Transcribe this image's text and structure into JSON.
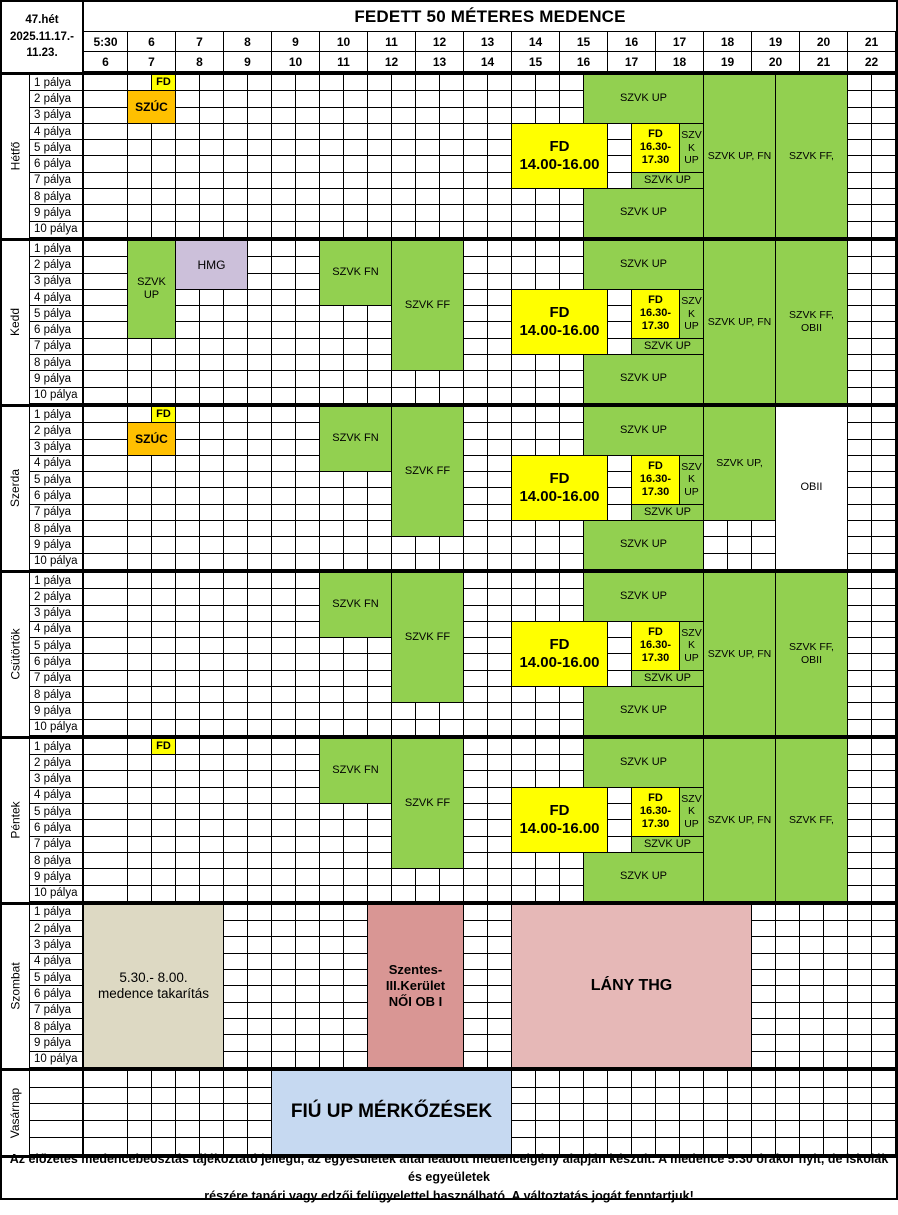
{
  "week": "47.hét\n2025.11.17.-\n11.23.",
  "title": "FEDETT 50 MÉTERES MEDENCE",
  "time_header": {
    "row1": [
      "5:30",
      "6",
      "7",
      "8",
      "9",
      "10",
      "11",
      "12",
      "13",
      "14",
      "15",
      "16",
      "17",
      "18",
      "19",
      "20",
      "21"
    ],
    "row2": [
      "6",
      "7",
      "8",
      "9",
      "10",
      "11",
      "12",
      "13",
      "14",
      "15",
      "16",
      "17",
      "18",
      "19",
      "20",
      "21",
      "22"
    ]
  },
  "lane_labels": [
    "1 pálya",
    "2 pálya",
    "3 pálya",
    "4 pálya",
    "5 pálya",
    "6 pálya",
    "7 pálya",
    "8 pálya",
    "9 pálya",
    "10 pálya"
  ],
  "palette": {
    "green": "#92D050",
    "yellow": "#FFFF00",
    "orange": "#FFC000",
    "purple": "#CCC0DA",
    "beige": "#DDD9C3",
    "red": "#D99694",
    "pink": "#E6B8B7",
    "blue": "#C6D9F1",
    "white": "#FFFFFF"
  },
  "days": [
    {
      "name": "Hétfő",
      "rows": 10,
      "show_lanes": true,
      "blocks": [
        {
          "label": "FD",
          "start": 6.5,
          "end": 7,
          "row": 1,
          "rows": 1,
          "color": "yellow",
          "bold": true,
          "size": 11
        },
        {
          "label": "SZÚC",
          "start": 6,
          "end": 7,
          "row": 2,
          "rows": 2,
          "color": "orange",
          "bold": true,
          "size": 12
        },
        {
          "label": "SZVK UP",
          "start": 15.5,
          "end": 18,
          "row": 1,
          "rows": 3,
          "color": "green",
          "size": 11
        },
        {
          "label": "FD\n14.00-16.00",
          "start": 14,
          "end": 16,
          "row": 4,
          "rows": 4,
          "color": "yellow",
          "bold": true,
          "size": 15
        },
        {
          "label": "FD\n16.30-\n17.30",
          "start": 16.5,
          "end": 17.5,
          "row": 4,
          "rows": 3,
          "color": "yellow",
          "bold": true,
          "size": 11
        },
        {
          "label": "SZV\nK\nUP",
          "start": 17.5,
          "end": 18,
          "row": 4,
          "rows": 3,
          "color": "green",
          "size": 10.5
        },
        {
          "label": "SZVK UP",
          "start": 16.5,
          "end": 18,
          "row": 7,
          "rows": 1,
          "color": "green",
          "size": 11
        },
        {
          "label": "SZVK UP",
          "start": 15.5,
          "end": 18,
          "row": 8,
          "rows": 3,
          "color": "green",
          "size": 11
        },
        {
          "label": "SZVK UP, FN",
          "start": 18,
          "end": 19.5,
          "row": 1,
          "rows": 10,
          "color": "green",
          "size": 10.5
        },
        {
          "label": "SZVK FF,",
          "start": 19.5,
          "end": 21,
          "row": 1,
          "rows": 10,
          "color": "green",
          "size": 10.5
        }
      ]
    },
    {
      "name": "Kedd",
      "rows": 10,
      "show_lanes": true,
      "blocks": [
        {
          "label": "SZVK UP",
          "start": 6,
          "end": 7,
          "row": 1,
          "rows": 6,
          "color": "green",
          "size": 11
        },
        {
          "label": "HMG",
          "start": 7,
          "end": 8.5,
          "row": 1,
          "rows": 3,
          "color": "purple",
          "size": 12
        },
        {
          "label": "SZVK FN",
          "start": 10,
          "end": 11.5,
          "row": 1,
          "rows": 4,
          "color": "green",
          "size": 11
        },
        {
          "label": "SZVK FF",
          "start": 11.5,
          "end": 13,
          "row": 1,
          "rows": 8,
          "color": "green",
          "size": 11
        },
        {
          "label": "SZVK UP",
          "start": 15.5,
          "end": 18,
          "row": 1,
          "rows": 3,
          "color": "green",
          "size": 11
        },
        {
          "label": "FD\n14.00-16.00",
          "start": 14,
          "end": 16,
          "row": 4,
          "rows": 4,
          "color": "yellow",
          "bold": true,
          "size": 15
        },
        {
          "label": "FD\n16.30-\n17.30",
          "start": 16.5,
          "end": 17.5,
          "row": 4,
          "rows": 3,
          "color": "yellow",
          "bold": true,
          "size": 11
        },
        {
          "label": "SZV\nK\nUP",
          "start": 17.5,
          "end": 18,
          "row": 4,
          "rows": 3,
          "color": "green",
          "size": 10.5
        },
        {
          "label": "SZVK UP",
          "start": 16.5,
          "end": 18,
          "row": 7,
          "rows": 1,
          "color": "green",
          "size": 11
        },
        {
          "label": "SZVK UP",
          "start": 15.5,
          "end": 18,
          "row": 8,
          "rows": 3,
          "color": "green",
          "size": 11
        },
        {
          "label": "SZVK UP, FN",
          "start": 18,
          "end": 19.5,
          "row": 1,
          "rows": 10,
          "color": "green",
          "size": 10.5
        },
        {
          "label": "SZVK FF,\nOBII",
          "start": 19.5,
          "end": 21,
          "row": 1,
          "rows": 10,
          "color": "green",
          "size": 10.5
        }
      ]
    },
    {
      "name": "Szerda",
      "rows": 10,
      "show_lanes": true,
      "blocks": [
        {
          "label": "FD",
          "start": 6.5,
          "end": 7,
          "row": 1,
          "rows": 1,
          "color": "yellow",
          "bold": true,
          "size": 11
        },
        {
          "label": "SZÚC",
          "start": 6,
          "end": 7,
          "row": 2,
          "rows": 2,
          "color": "orange",
          "bold": true,
          "size": 12
        },
        {
          "label": "SZVK FN",
          "start": 10,
          "end": 11.5,
          "row": 1,
          "rows": 4,
          "color": "green",
          "size": 11
        },
        {
          "label": "SZVK FF",
          "start": 11.5,
          "end": 13,
          "row": 1,
          "rows": 8,
          "color": "green",
          "size": 11
        },
        {
          "label": "SZVK UP",
          "start": 15.5,
          "end": 18,
          "row": 1,
          "rows": 3,
          "color": "green",
          "size": 11
        },
        {
          "label": "FD\n14.00-16.00",
          "start": 14,
          "end": 16,
          "row": 4,
          "rows": 4,
          "color": "yellow",
          "bold": true,
          "size": 15
        },
        {
          "label": "FD\n16.30-\n17.30",
          "start": 16.5,
          "end": 17.5,
          "row": 4,
          "rows": 3,
          "color": "yellow",
          "bold": true,
          "size": 11
        },
        {
          "label": "SZV\nK\nUP",
          "start": 17.5,
          "end": 18,
          "row": 4,
          "rows": 3,
          "color": "green",
          "size": 10.5
        },
        {
          "label": "SZVK UP",
          "start": 16.5,
          "end": 18,
          "row": 7,
          "rows": 1,
          "color": "green",
          "size": 11
        },
        {
          "label": "SZVK UP",
          "start": 15.5,
          "end": 18,
          "row": 8,
          "rows": 3,
          "color": "green",
          "size": 11
        },
        {
          "label": "SZVK UP,",
          "start": 18,
          "end": 19.5,
          "row": 1,
          "rows": 7,
          "color": "green",
          "size": 10.5
        },
        {
          "label": "OBII",
          "start": 19.5,
          "end": 21,
          "row": 1,
          "rows": 10,
          "color": "white",
          "size": 11
        }
      ]
    },
    {
      "name": "Csütörtök",
      "rows": 10,
      "show_lanes": true,
      "blocks": [
        {
          "label": "SZVK FN",
          "start": 10,
          "end": 11.5,
          "row": 1,
          "rows": 4,
          "color": "green",
          "size": 11
        },
        {
          "label": "SZVK FF",
          "start": 11.5,
          "end": 13,
          "row": 1,
          "rows": 8,
          "color": "green",
          "size": 11
        },
        {
          "label": "SZVK UP",
          "start": 15.5,
          "end": 18,
          "row": 1,
          "rows": 3,
          "color": "green",
          "size": 11
        },
        {
          "label": "FD\n14.00-16.00",
          "start": 14,
          "end": 16,
          "row": 4,
          "rows": 4,
          "color": "yellow",
          "bold": true,
          "size": 15
        },
        {
          "label": "FD\n16.30-\n17.30",
          "start": 16.5,
          "end": 17.5,
          "row": 4,
          "rows": 3,
          "color": "yellow",
          "bold": true,
          "size": 11
        },
        {
          "label": "SZV\nK\nUP",
          "start": 17.5,
          "end": 18,
          "row": 4,
          "rows": 3,
          "color": "green",
          "size": 10.5
        },
        {
          "label": "SZVK UP",
          "start": 16.5,
          "end": 18,
          "row": 7,
          "rows": 1,
          "color": "green",
          "size": 11
        },
        {
          "label": "SZVK UP",
          "start": 15.5,
          "end": 18,
          "row": 8,
          "rows": 3,
          "color": "green",
          "size": 11
        },
        {
          "label": "SZVK UP, FN",
          "start": 18,
          "end": 19.5,
          "row": 1,
          "rows": 10,
          "color": "green",
          "size": 10.5
        },
        {
          "label": "SZVK FF,\nOBII",
          "start": 19.5,
          "end": 21,
          "row": 1,
          "rows": 10,
          "color": "green",
          "size": 10.5
        }
      ]
    },
    {
      "name": "Péntek",
      "rows": 10,
      "show_lanes": true,
      "blocks": [
        {
          "label": "FD",
          "start": 6.5,
          "end": 7,
          "row": 1,
          "rows": 1,
          "color": "yellow",
          "bold": true,
          "size": 11
        },
        {
          "label": "SZVK FN",
          "start": 10,
          "end": 11.5,
          "row": 1,
          "rows": 4,
          "color": "green",
          "size": 11
        },
        {
          "label": "SZVK FF",
          "start": 11.5,
          "end": 13,
          "row": 1,
          "rows": 8,
          "color": "green",
          "size": 11
        },
        {
          "label": "SZVK UP",
          "start": 15.5,
          "end": 18,
          "row": 1,
          "rows": 3,
          "color": "green",
          "size": 11
        },
        {
          "label": "FD\n14.00-16.00",
          "start": 14,
          "end": 16,
          "row": 4,
          "rows": 4,
          "color": "yellow",
          "bold": true,
          "size": 15
        },
        {
          "label": "FD\n16.30-\n17.30",
          "start": 16.5,
          "end": 17.5,
          "row": 4,
          "rows": 3,
          "color": "yellow",
          "bold": true,
          "size": 11
        },
        {
          "label": "SZV\nK\nUP",
          "start": 17.5,
          "end": 18,
          "row": 4,
          "rows": 3,
          "color": "green",
          "size": 10.5
        },
        {
          "label": "SZVK UP",
          "start": 16.5,
          "end": 18,
          "row": 7,
          "rows": 1,
          "color": "green",
          "size": 11
        },
        {
          "label": "SZVK UP",
          "start": 15.5,
          "end": 18,
          "row": 8,
          "rows": 3,
          "color": "green",
          "size": 11
        },
        {
          "label": "SZVK UP, FN",
          "start": 18,
          "end": 19.5,
          "row": 1,
          "rows": 10,
          "color": "green",
          "size": 10.5
        },
        {
          "label": "SZVK FF,",
          "start": 19.5,
          "end": 21,
          "row": 1,
          "rows": 10,
          "color": "green",
          "size": 10.5
        }
      ]
    },
    {
      "name": "Szombat",
      "rows": 10,
      "show_lanes": true,
      "blocks": [
        {
          "label": "5.30.- 8.00.\nmedence takarítás",
          "start": 5.5,
          "end": 8,
          "row": 1,
          "rows": 10,
          "color": "beige",
          "size": 13.5
        },
        {
          "label": "Szentes-\nIII.Kerület\nNŐI OB I",
          "start": 11,
          "end": 13,
          "row": 1,
          "rows": 10,
          "color": "red",
          "bold": true,
          "size": 13
        },
        {
          "label": "LÁNY THG",
          "start": 14,
          "end": 19,
          "row": 1,
          "rows": 10,
          "color": "pink",
          "bold": true,
          "size": 16
        }
      ]
    },
    {
      "name": "Vasárnap",
      "rows": 5,
      "show_lanes": false,
      "blocks": [
        {
          "label": "FIÚ UP MÉRKŐZÉSEK",
          "start": 9,
          "end": 14,
          "row": 1,
          "rows": 5,
          "color": "blue",
          "bold": true,
          "size": 19
        }
      ]
    }
  ],
  "footer": "Az előzetes medencebeosztás tájékoztató jellegű, az egyesületek által leadott medenceigény alapján készült. A medence 5:30 órakor nyit, de iskolák és egyeületek\nrészére tanári vagy edzői felügyelettel használható. A változtatás jogát fenntartjuk!"
}
